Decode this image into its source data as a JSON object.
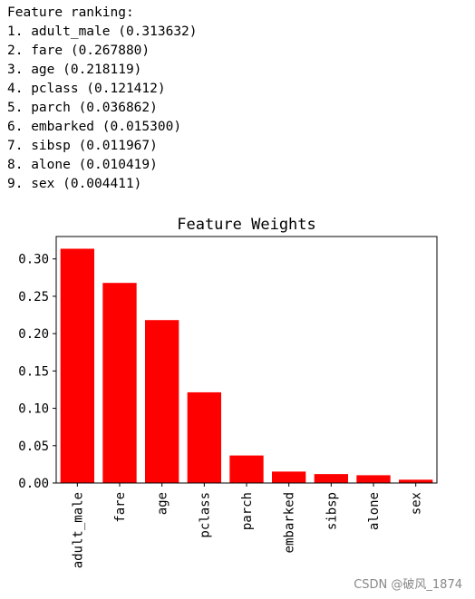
{
  "output_text": {
    "header": "Feature ranking:",
    "lines": [
      "1. adult_male (0.313632)",
      "2. fare (0.267880)",
      "3. age (0.218119)",
      "4. pclass (0.121412)",
      "5. parch (0.036862)",
      "6. embarked (0.015300)",
      "7. sibsp (0.011967)",
      "8. alone (0.010419)",
      "9. sex (0.004411)"
    ]
  },
  "chart_data": {
    "type": "bar",
    "title": "Feature Weights",
    "categories": [
      "adult_male",
      "fare",
      "age",
      "pclass",
      "parch",
      "embarked",
      "sibsp",
      "alone",
      "sex"
    ],
    "values": [
      0.313632,
      0.26788,
      0.218119,
      0.121412,
      0.036862,
      0.0153,
      0.011967,
      0.010419,
      0.004411
    ],
    "bar_color": "#ff0000",
    "ylim": [
      0,
      0.33
    ],
    "yticks": [
      0.0,
      0.05,
      0.1,
      0.15,
      0.2,
      0.25,
      0.3
    ],
    "ytick_labels": [
      "0.00",
      "0.05",
      "0.10",
      "0.15",
      "0.20",
      "0.25",
      "0.30"
    ],
    "xlabel": "",
    "ylabel": "",
    "grid": false,
    "legend": "none"
  },
  "watermark": "CSDN @破风_1874"
}
